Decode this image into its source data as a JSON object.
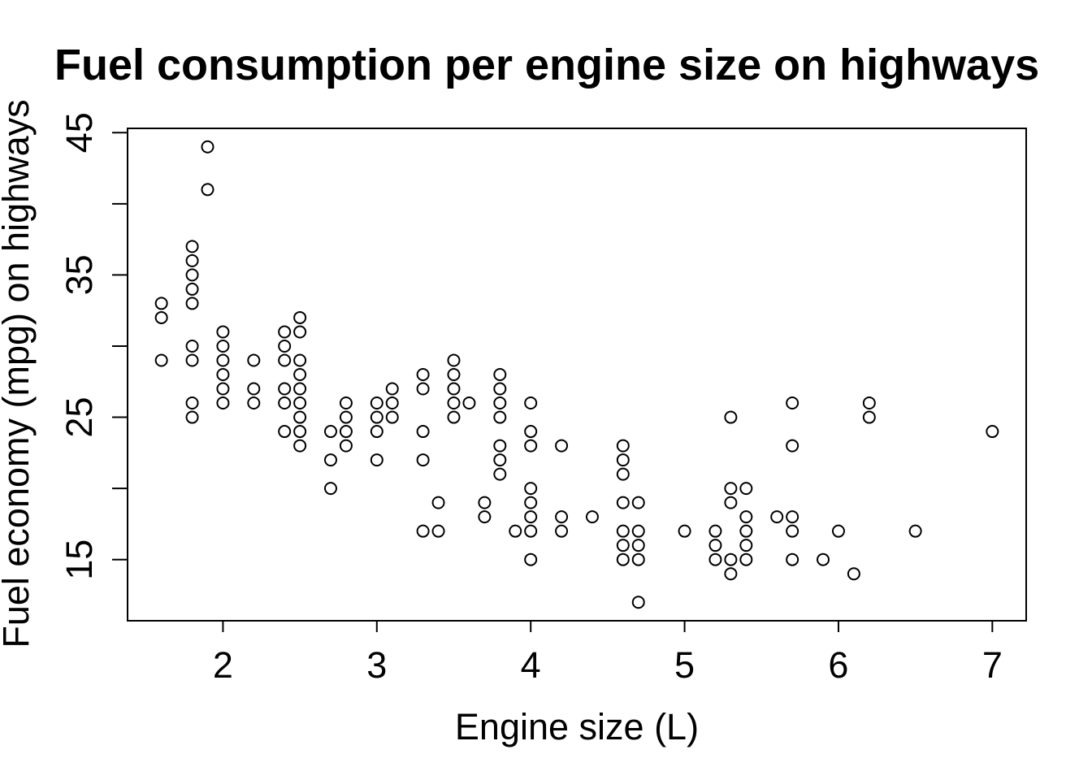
{
  "chart_data": {
    "type": "scatter",
    "title": "Fuel consumption per engine size on highways",
    "xlabel": "Engine size (L)",
    "ylabel": "Fuel economy (mpg) on highways",
    "xlim": [
      1.38,
      7.22
    ],
    "ylim": [
      10.7,
      45.3
    ],
    "x_ticks": [
      2,
      3,
      4,
      5,
      6,
      7
    ],
    "y_ticks": [
      15,
      20,
      25,
      30,
      35,
      40,
      45
    ],
    "y_tick_labels": [
      15,
      25,
      35,
      45
    ],
    "grid": false,
    "legend": "none",
    "marker": "open-circle",
    "points": [
      [
        1.6,
        33
      ],
      [
        1.6,
        32
      ],
      [
        1.6,
        29
      ],
      [
        1.8,
        37
      ],
      [
        1.8,
        36
      ],
      [
        1.8,
        35
      ],
      [
        1.8,
        34
      ],
      [
        1.8,
        33
      ],
      [
        1.8,
        30
      ],
      [
        1.8,
        29
      ],
      [
        1.8,
        26
      ],
      [
        1.8,
        25
      ],
      [
        1.9,
        44
      ],
      [
        1.9,
        41
      ],
      [
        2.0,
        31
      ],
      [
        2.0,
        30
      ],
      [
        2.0,
        29
      ],
      [
        2.0,
        28
      ],
      [
        2.0,
        27
      ],
      [
        2.0,
        26
      ],
      [
        2.2,
        29
      ],
      [
        2.2,
        27
      ],
      [
        2.2,
        26
      ],
      [
        2.4,
        31
      ],
      [
        2.4,
        30
      ],
      [
        2.4,
        29
      ],
      [
        2.4,
        27
      ],
      [
        2.4,
        26
      ],
      [
        2.4,
        24
      ],
      [
        2.5,
        32
      ],
      [
        2.5,
        31
      ],
      [
        2.5,
        29
      ],
      [
        2.5,
        28
      ],
      [
        2.5,
        27
      ],
      [
        2.5,
        26
      ],
      [
        2.5,
        25
      ],
      [
        2.5,
        24
      ],
      [
        2.5,
        23
      ],
      [
        2.7,
        24
      ],
      [
        2.7,
        22
      ],
      [
        2.7,
        20
      ],
      [
        2.8,
        26
      ],
      [
        2.8,
        25
      ],
      [
        2.8,
        24
      ],
      [
        2.8,
        23
      ],
      [
        3.0,
        26
      ],
      [
        3.0,
        25
      ],
      [
        3.0,
        24
      ],
      [
        3.0,
        22
      ],
      [
        3.1,
        27
      ],
      [
        3.1,
        26
      ],
      [
        3.1,
        25
      ],
      [
        3.3,
        28
      ],
      [
        3.3,
        27
      ],
      [
        3.3,
        24
      ],
      [
        3.3,
        22
      ],
      [
        3.3,
        17
      ],
      [
        3.4,
        19
      ],
      [
        3.4,
        17
      ],
      [
        3.5,
        29
      ],
      [
        3.5,
        28
      ],
      [
        3.5,
        27
      ],
      [
        3.5,
        26
      ],
      [
        3.5,
        25
      ],
      [
        3.6,
        26
      ],
      [
        3.7,
        19
      ],
      [
        3.7,
        18
      ],
      [
        3.8,
        28
      ],
      [
        3.8,
        27
      ],
      [
        3.8,
        26
      ],
      [
        3.8,
        25
      ],
      [
        3.8,
        23
      ],
      [
        3.8,
        22
      ],
      [
        3.8,
        21
      ],
      [
        3.9,
        17
      ],
      [
        4.0,
        26
      ],
      [
        4.0,
        24
      ],
      [
        4.0,
        23
      ],
      [
        4.0,
        20
      ],
      [
        4.0,
        19
      ],
      [
        4.0,
        18
      ],
      [
        4.0,
        17
      ],
      [
        4.0,
        15
      ],
      [
        4.2,
        23
      ],
      [
        4.2,
        18
      ],
      [
        4.2,
        17
      ],
      [
        4.4,
        18
      ],
      [
        4.6,
        23
      ],
      [
        4.6,
        22
      ],
      [
        4.6,
        21
      ],
      [
        4.6,
        19
      ],
      [
        4.6,
        17
      ],
      [
        4.6,
        16
      ],
      [
        4.6,
        15
      ],
      [
        4.7,
        19
      ],
      [
        4.7,
        17
      ],
      [
        4.7,
        16
      ],
      [
        4.7,
        15
      ],
      [
        4.7,
        12
      ],
      [
        5.0,
        17
      ],
      [
        5.2,
        17
      ],
      [
        5.2,
        16
      ],
      [
        5.2,
        15
      ],
      [
        5.3,
        25
      ],
      [
        5.3,
        20
      ],
      [
        5.3,
        19
      ],
      [
        5.3,
        15
      ],
      [
        5.3,
        14
      ],
      [
        5.4,
        20
      ],
      [
        5.4,
        18
      ],
      [
        5.4,
        17
      ],
      [
        5.4,
        16
      ],
      [
        5.4,
        15
      ],
      [
        5.6,
        18
      ],
      [
        5.7,
        26
      ],
      [
        5.7,
        23
      ],
      [
        5.7,
        18
      ],
      [
        5.7,
        17
      ],
      [
        5.7,
        15
      ],
      [
        5.9,
        15
      ],
      [
        6.0,
        17
      ],
      [
        6.1,
        14
      ],
      [
        6.2,
        26
      ],
      [
        6.2,
        25
      ],
      [
        6.5,
        17
      ],
      [
        7.0,
        24
      ]
    ]
  }
}
